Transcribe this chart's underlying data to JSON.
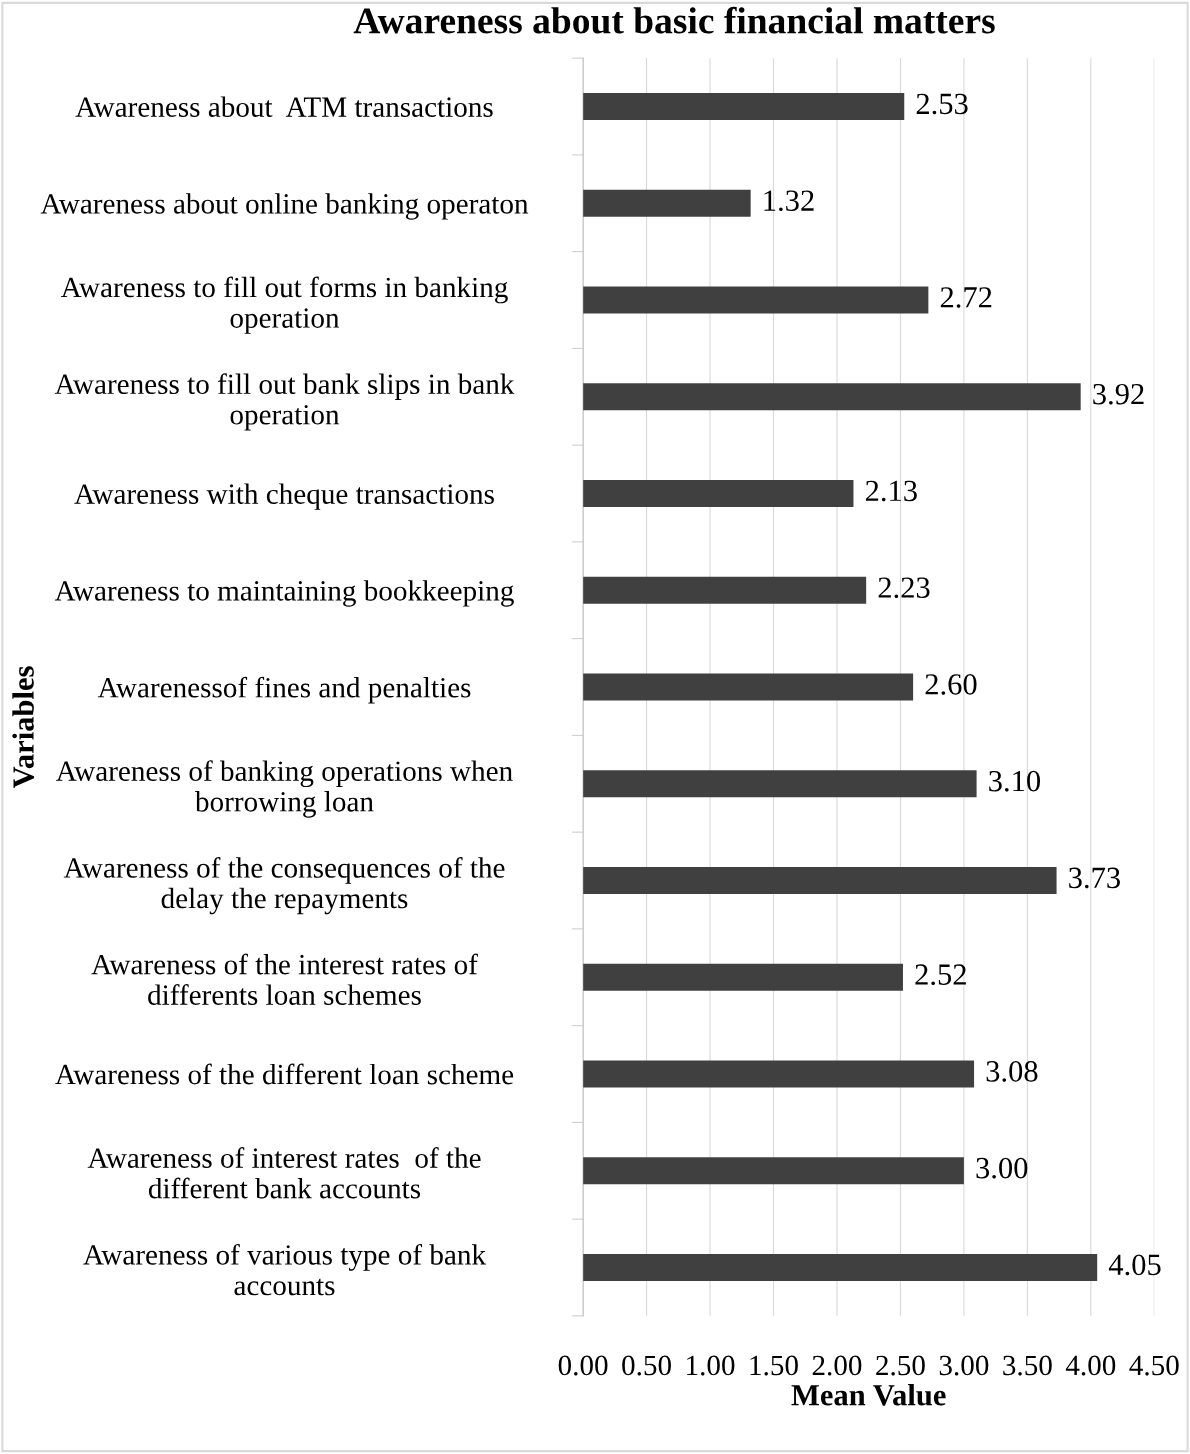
{
  "chart_data": {
    "type": "bar",
    "orientation": "horizontal",
    "title": "Awareness about basic financial matters",
    "xlabel": "Mean Value",
    "ylabel": "Variables",
    "categories": [
      "Awareness about  ATM transactions",
      "Awareness about online banking operaton",
      "Awareness to fill out forms in banking\noperation",
      "Awareness to fill out bank slips in bank\noperation",
      "Awareness with cheque transactions",
      "Awareness to maintaining bookkeeping",
      "Awarenessof fines and penalties",
      "Awareness of banking operations when\nborrowing loan",
      "Awareness of the consequences of the\ndelay the repayments",
      "Awareness of the interest rates of\ndifferents loan schemes",
      "Awareness of the different loan scheme",
      "Awareness of interest rates  of the\ndifferent bank accounts",
      "Awareness of various type of bank\naccounts"
    ],
    "values": [
      2.53,
      1.32,
      2.72,
      3.92,
      2.13,
      2.23,
      2.6,
      3.1,
      3.73,
      2.52,
      3.08,
      3.0,
      4.05
    ],
    "value_labels": [
      "2.53",
      "1.32",
      "2.72",
      "3.92",
      "2.13",
      "2.23",
      "2.60",
      "3.10",
      "3.73",
      "2.52",
      "3.08",
      "3.00",
      "4.05"
    ],
    "color": "#404040",
    "xlim": [
      0,
      4.5
    ],
    "xticks": [
      {
        "value": 0,
        "label": "0.00"
      },
      {
        "value": 0.5,
        "label": "0.50"
      },
      {
        "value": 1,
        "label": "1.00"
      },
      {
        "value": 1.5,
        "label": "1.50"
      },
      {
        "value": 2,
        "label": "2.00"
      },
      {
        "value": 2.5,
        "label": "2.50"
      },
      {
        "value": 3,
        "label": "3.00"
      },
      {
        "value": 3.5,
        "label": "3.50"
      },
      {
        "value": 4,
        "label": "4.00"
      },
      {
        "value": 4.5,
        "label": "4.50"
      }
    ],
    "grid": "x",
    "legend": false
  }
}
